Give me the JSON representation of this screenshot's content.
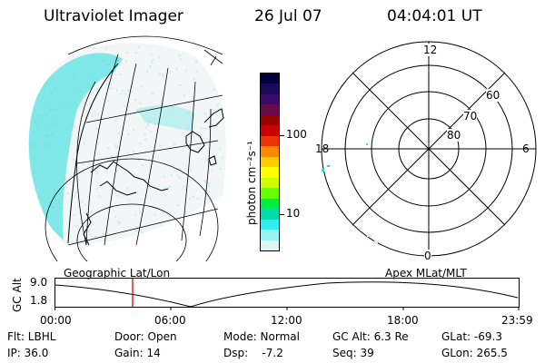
{
  "header": {
    "title": "Ultraviolet Imager",
    "date": "26 Jul 07",
    "time": "04:04:01 UT"
  },
  "colorbar": {
    "unit_label": "photon cm⁻²s⁻¹",
    "ticks": [
      "100",
      "10"
    ],
    "colors": [
      "#000040",
      "#1a0a5a",
      "#3a0b6a",
      "#6a0a4a",
      "#9a0000",
      "#cc0000",
      "#ee3300",
      "#ff8800",
      "#ffcc00",
      "#ffff00",
      "#ccff00",
      "#66ff00",
      "#00ee44",
      "#00ddaa",
      "#33eeee",
      "#99f5f5",
      "#dff5f5"
    ]
  },
  "polar_plot": {
    "mlat_labels": [
      "60",
      "70",
      "80"
    ],
    "mlt_labels": {
      "top": "12",
      "left": "18",
      "right": "6",
      "bottom": "0"
    }
  },
  "altitude_plot": {
    "left_title": "Geographic Lat/Lon",
    "right_title": "Apex  MLat/MLT",
    "ylabel": "GC Alt",
    "yticks": [
      "9.0",
      "1.8"
    ],
    "xticks": [
      "00:00",
      "06:00",
      "12:00",
      "18:00",
      "23:59"
    ],
    "marker_color": "#dd0000"
  },
  "info": {
    "row1": [
      "Flt: LBHL",
      "Door: Open",
      "Mode: Normal",
      "GC Alt: 6.3 Re",
      "GLat: -69.3"
    ],
    "row2": [
      "IP: 36.0",
      "Gain: 14",
      "Dsp:    -7.2",
      "Seq: 39",
      "GLon: 265.5"
    ]
  },
  "colors": {
    "aurora": "#22dddd",
    "faint": "#cfe8e8",
    "lines": "#000000"
  }
}
